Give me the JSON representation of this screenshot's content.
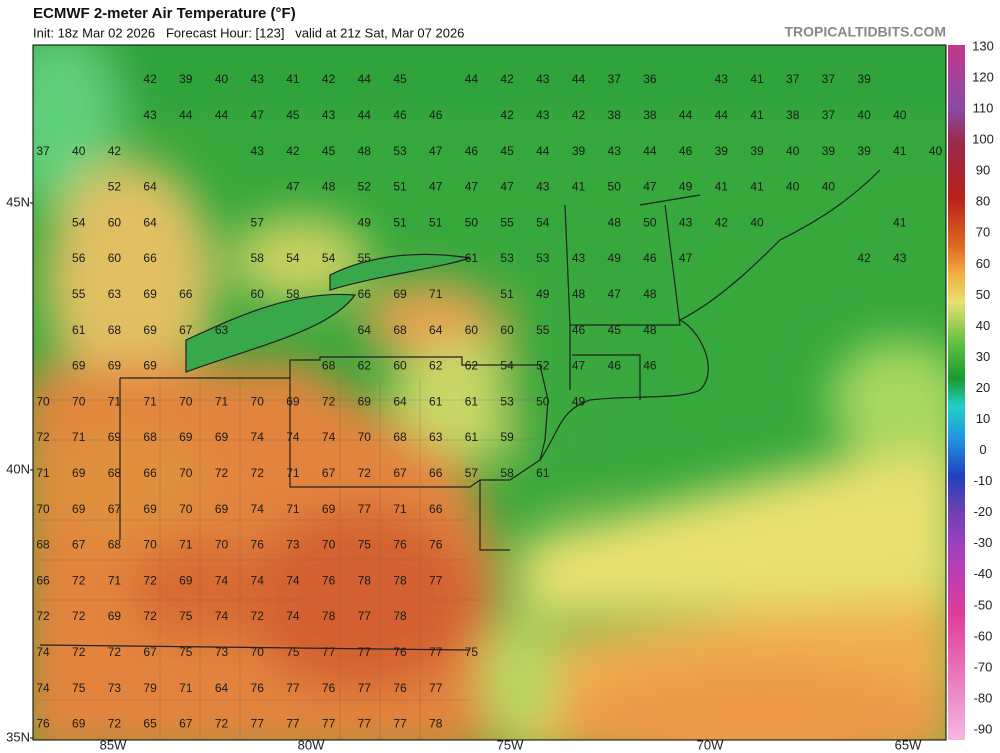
{
  "header": {
    "title": "ECMWF 2-meter Air Temperature (°F)",
    "subtitle": "Init: 18z Mar 02 2026   Forecast Hour: [123]   valid at 21z Sat, Mar 07 2026",
    "site": "TROPICALTIDBITS.COM"
  },
  "colorbar": {
    "ticks": [
      130,
      120,
      110,
      100,
      90,
      80,
      70,
      60,
      50,
      40,
      30,
      20,
      10,
      0,
      -10,
      -20,
      -30,
      -40,
      -50,
      -60,
      -70,
      -80,
      -90
    ]
  },
  "axes": {
    "lat": [
      "45N",
      "40N",
      "35N"
    ],
    "lon": [
      "85W",
      "80W",
      "75W",
      "70W",
      "65W"
    ]
  },
  "grid": {
    "rows": [
      [
        null,
        null,
        null,
        42,
        39,
        40,
        43,
        41,
        42,
        44,
        45,
        null,
        44,
        42,
        43,
        44,
        37,
        36,
        null,
        43,
        41,
        37,
        37,
        39
      ],
      [
        null,
        null,
        null,
        43,
        44,
        44,
        47,
        45,
        43,
        44,
        46,
        46,
        null,
        42,
        43,
        42,
        38,
        38,
        44,
        44,
        41,
        38,
        37,
        40,
        40
      ],
      [
        37,
        40,
        42,
        null,
        null,
        null,
        43,
        42,
        45,
        48,
        53,
        47,
        46,
        45,
        44,
        39,
        43,
        44,
        46,
        39,
        39,
        40,
        39,
        39,
        41,
        40
      ],
      [
        null,
        null,
        52,
        64,
        null,
        null,
        null,
        47,
        48,
        52,
        51,
        47,
        47,
        47,
        43,
        41,
        50,
        47,
        49,
        41,
        41,
        40,
        40
      ],
      [
        null,
        54,
        60,
        64,
        null,
        null,
        57,
        null,
        null,
        49,
        51,
        51,
        50,
        55,
        54,
        null,
        48,
        50,
        43,
        42,
        40,
        null,
        null,
        null,
        41
      ],
      [
        null,
        56,
        60,
        66,
        null,
        null,
        58,
        54,
        54,
        55,
        null,
        null,
        61,
        53,
        53,
        43,
        49,
        46,
        47,
        null,
        null,
        null,
        null,
        42,
        43
      ],
      [
        null,
        55,
        63,
        69,
        66,
        null,
        60,
        58,
        null,
        66,
        69,
        71,
        null,
        51,
        49,
        48,
        47,
        48
      ],
      [
        null,
        61,
        68,
        69,
        67,
        63,
        null,
        null,
        null,
        64,
        68,
        64,
        60,
        60,
        55,
        46,
        45,
        48
      ],
      [
        null,
        69,
        69,
        69,
        null,
        null,
        null,
        null,
        68,
        62,
        60,
        62,
        62,
        54,
        52,
        47,
        46,
        46
      ],
      [
        70,
        70,
        71,
        71,
        70,
        71,
        70,
        69,
        72,
        69,
        64,
        61,
        61,
        53,
        50,
        49
      ],
      [
        72,
        71,
        69,
        68,
        69,
        69,
        74,
        74,
        74,
        70,
        68,
        63,
        61,
        59
      ],
      [
        71,
        69,
        68,
        66,
        70,
        72,
        72,
        71,
        67,
        72,
        67,
        66,
        57,
        58,
        61
      ],
      [
        70,
        69,
        67,
        69,
        70,
        69,
        74,
        71,
        69,
        77,
        71,
        66
      ],
      [
        68,
        67,
        68,
        70,
        71,
        70,
        76,
        73,
        70,
        75,
        76,
        76
      ],
      [
        66,
        72,
        71,
        72,
        69,
        74,
        74,
        74,
        76,
        78,
        78,
        77
      ],
      [
        72,
        72,
        69,
        72,
        75,
        74,
        72,
        74,
        78,
        77,
        78
      ],
      [
        74,
        72,
        72,
        67,
        75,
        73,
        70,
        75,
        77,
        77,
        76,
        77,
        75
      ],
      [
        74,
        75,
        73,
        79,
        71,
        64,
        76,
        77,
        76,
        77,
        76,
        77
      ],
      [
        76,
        69,
        72,
        65,
        67,
        72,
        77,
        77,
        77,
        77,
        77,
        78
      ]
    ]
  }
}
